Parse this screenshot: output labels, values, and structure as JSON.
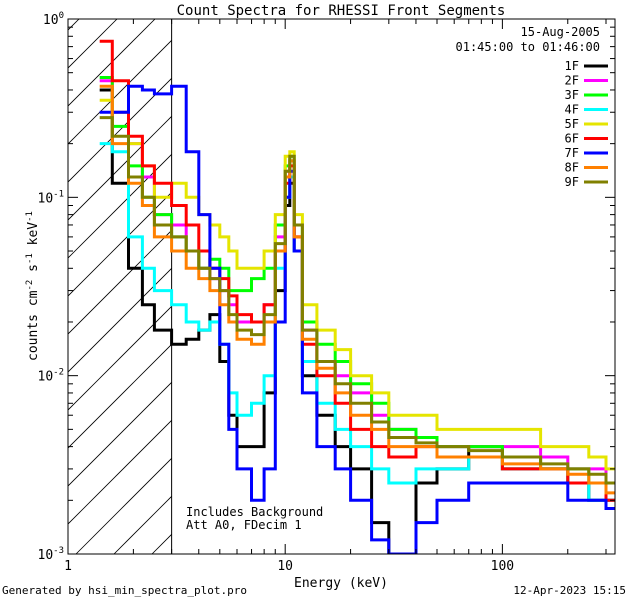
{
  "chart_data": {
    "type": "line",
    "title": "Count Spectra for RHESSI Front Segments",
    "xlabel": "Energy (keV)",
    "ylabel": {
      "main": "counts cm",
      "exp1": "-2",
      "mid": " s",
      "exp2": "-1",
      "mid2": " keV",
      "exp3": "-1"
    },
    "x_scale": "log",
    "y_scale": "log",
    "xlim": [
      1.0,
      330.0
    ],
    "ylim": [
      0.001,
      1.0
    ],
    "x_tick_labels": [
      "1",
      "10",
      "100"
    ],
    "y_tick_labels": [
      {
        "base": "10",
        "exp": "0",
        "value": 1.0
      },
      {
        "base": "10",
        "exp": "-1",
        "value": 0.1
      },
      {
        "base": "10",
        "exp": "-2",
        "value": 0.01
      },
      {
        "base": "10",
        "exp": "-3",
        "value": 0.001
      }
    ],
    "attenuator_region": {
      "xmax": 3.0,
      "style": "hatched"
    },
    "legend": {
      "placement": "top-right",
      "date": "15-Aug-2005",
      "time_range": "01:45:00 to 01:46:00"
    },
    "annotation": [
      "Includes Background",
      "Att A0, FDecim 1"
    ],
    "series": [
      {
        "name": "1F",
        "color": "#000000",
        "x": [
          1.4,
          1.6,
          1.9,
          2.2,
          2.5,
          3.0,
          3.5,
          4.0,
          4.5,
          5.0,
          5.5,
          6.0,
          7.0,
          8.0,
          9.0,
          10.0,
          10.5,
          11.0,
          12.0,
          14.0,
          17.0,
          20.0,
          25.0,
          30.0,
          40.0,
          50.0,
          70.0,
          100.0,
          150.0,
          200.0,
          250.0,
          300.0
        ],
        "y": [
          0.4,
          0.12,
          0.04,
          0.025,
          0.018,
          0.015,
          0.016,
          0.018,
          0.022,
          0.012,
          0.006,
          0.004,
          0.004,
          0.008,
          0.03,
          0.09,
          0.12,
          0.05,
          0.01,
          0.006,
          0.004,
          0.003,
          0.0015,
          0.001,
          0.0025,
          0.003,
          0.004,
          0.003,
          0.003,
          0.0025,
          0.002,
          0.002
        ]
      },
      {
        "name": "2F",
        "color": "#ff00ff",
        "x": [
          1.4,
          1.6,
          1.9,
          2.2,
          2.5,
          3.0,
          3.5,
          4.0,
          4.5,
          5.0,
          5.5,
          6.0,
          7.0,
          8.0,
          9.0,
          10.0,
          10.5,
          11.0,
          12.0,
          14.0,
          17.0,
          20.0,
          25.0,
          30.0,
          40.0,
          50.0,
          70.0,
          100.0,
          150.0,
          200.0,
          250.0,
          300.0
        ],
        "y": [
          0.45,
          0.3,
          0.2,
          0.13,
          0.08,
          0.07,
          0.05,
          0.04,
          0.035,
          0.03,
          0.025,
          0.02,
          0.02,
          0.025,
          0.06,
          0.14,
          0.16,
          0.06,
          0.018,
          0.012,
          0.01,
          0.008,
          0.006,
          0.005,
          0.0045,
          0.004,
          0.004,
          0.004,
          0.0035,
          0.003,
          0.003,
          0.0025
        ]
      },
      {
        "name": "3F",
        "color": "#00ff00",
        "x": [
          1.4,
          1.6,
          1.9,
          2.2,
          2.5,
          3.0,
          3.5,
          4.0,
          4.5,
          5.0,
          5.5,
          6.0,
          7.0,
          8.0,
          9.0,
          10.0,
          10.5,
          11.0,
          12.0,
          14.0,
          17.0,
          20.0,
          25.0,
          30.0,
          40.0,
          50.0,
          70.0,
          100.0,
          150.0,
          200.0,
          250.0,
          300.0
        ],
        "y": [
          0.47,
          0.25,
          0.15,
          0.1,
          0.08,
          0.06,
          0.05,
          0.04,
          0.045,
          0.04,
          0.03,
          0.03,
          0.035,
          0.04,
          0.07,
          0.15,
          0.17,
          0.07,
          0.02,
          0.015,
          0.012,
          0.009,
          0.007,
          0.005,
          0.0045,
          0.004,
          0.004,
          0.0035,
          0.003,
          0.003,
          0.0025,
          0.0025
        ]
      },
      {
        "name": "4F",
        "color": "#00ffff",
        "x": [
          1.4,
          1.6,
          1.9,
          2.2,
          2.5,
          3.0,
          3.5,
          4.0,
          4.5,
          5.0,
          5.5,
          6.0,
          7.0,
          8.0,
          9.0,
          10.0,
          10.5,
          11.0,
          12.0,
          14.0,
          17.0,
          20.0,
          25.0,
          30.0,
          40.0,
          50.0,
          70.0,
          100.0,
          150.0,
          200.0,
          250.0,
          300.0
        ],
        "y": [
          0.2,
          0.18,
          0.06,
          0.04,
          0.03,
          0.025,
          0.02,
          0.018,
          0.02,
          0.015,
          0.008,
          0.006,
          0.007,
          0.01,
          0.04,
          0.1,
          0.13,
          0.05,
          0.012,
          0.007,
          0.005,
          0.004,
          0.003,
          0.0025,
          0.003,
          0.003,
          0.0035,
          0.003,
          0.003,
          0.0025,
          0.002,
          0.002
        ]
      },
      {
        "name": "5F",
        "color": "#e5e500",
        "x": [
          1.4,
          1.6,
          1.9,
          2.2,
          2.5,
          3.0,
          3.5,
          4.0,
          4.5,
          5.0,
          5.5,
          6.0,
          7.0,
          8.0,
          9.0,
          10.0,
          10.5,
          11.0,
          12.0,
          14.0,
          17.0,
          20.0,
          25.0,
          30.0,
          40.0,
          50.0,
          70.0,
          100.0,
          150.0,
          200.0,
          250.0,
          300.0
        ],
        "y": [
          0.35,
          0.3,
          0.2,
          0.15,
          0.1,
          0.12,
          0.1,
          0.08,
          0.07,
          0.06,
          0.05,
          0.04,
          0.04,
          0.05,
          0.08,
          0.17,
          0.18,
          0.08,
          0.025,
          0.018,
          0.014,
          0.01,
          0.008,
          0.006,
          0.006,
          0.005,
          0.005,
          0.005,
          0.004,
          0.004,
          0.0035,
          0.003
        ]
      },
      {
        "name": "6F",
        "color": "#ff0000",
        "x": [
          1.4,
          1.6,
          1.9,
          2.2,
          2.5,
          3.0,
          3.5,
          4.0,
          4.5,
          5.0,
          5.5,
          6.0,
          7.0,
          8.0,
          9.0,
          10.0,
          10.5,
          11.0,
          12.0,
          14.0,
          17.0,
          20.0,
          25.0,
          30.0,
          40.0,
          50.0,
          70.0,
          100.0,
          150.0,
          200.0,
          250.0,
          300.0
        ],
        "y": [
          0.75,
          0.45,
          0.22,
          0.15,
          0.12,
          0.09,
          0.07,
          0.05,
          0.04,
          0.035,
          0.028,
          0.022,
          0.02,
          0.025,
          0.05,
          0.12,
          0.15,
          0.06,
          0.015,
          0.01,
          0.007,
          0.005,
          0.004,
          0.0035,
          0.004,
          0.0035,
          0.0035,
          0.003,
          0.003,
          0.0025,
          0.0025,
          0.002
        ]
      },
      {
        "name": "7F",
        "color": "#0000ff",
        "x": [
          1.4,
          1.6,
          1.9,
          2.2,
          2.5,
          3.0,
          3.5,
          4.0,
          4.5,
          5.0,
          5.5,
          6.0,
          7.0,
          8.0,
          9.0,
          10.0,
          10.5,
          11.0,
          12.0,
          14.0,
          17.0,
          20.0,
          25.0,
          30.0,
          40.0,
          50.0,
          70.0,
          100.0,
          150.0,
          200.0,
          250.0,
          300.0
        ],
        "y": [
          0.3,
          0.3,
          0.42,
          0.4,
          0.38,
          0.42,
          0.18,
          0.08,
          0.04,
          0.015,
          0.005,
          0.003,
          0.002,
          0.003,
          0.02,
          0.1,
          0.14,
          0.05,
          0.008,
          0.004,
          0.003,
          0.002,
          0.0012,
          0.001,
          0.0015,
          0.002,
          0.0025,
          0.0025,
          0.0025,
          0.002,
          0.002,
          0.0018
        ]
      },
      {
        "name": "8F",
        "color": "#ff8000",
        "x": [
          1.4,
          1.6,
          1.9,
          2.2,
          2.5,
          3.0,
          3.5,
          4.0,
          4.5,
          5.0,
          5.5,
          6.0,
          7.0,
          8.0,
          9.0,
          10.0,
          10.5,
          11.0,
          12.0,
          14.0,
          17.0,
          20.0,
          25.0,
          30.0,
          40.0,
          50.0,
          70.0,
          100.0,
          150.0,
          200.0,
          250.0,
          300.0
        ],
        "y": [
          0.42,
          0.2,
          0.12,
          0.09,
          0.06,
          0.05,
          0.04,
          0.035,
          0.03,
          0.025,
          0.02,
          0.016,
          0.015,
          0.02,
          0.05,
          0.13,
          0.16,
          0.06,
          0.016,
          0.011,
          0.008,
          0.006,
          0.005,
          0.004,
          0.004,
          0.0035,
          0.0035,
          0.0032,
          0.003,
          0.0028,
          0.0025,
          0.0022
        ]
      },
      {
        "name": "9F",
        "color": "#808000",
        "x": [
          1.4,
          1.6,
          1.9,
          2.2,
          2.5,
          3.0,
          3.5,
          4.0,
          4.5,
          5.0,
          5.5,
          6.0,
          7.0,
          8.0,
          9.0,
          10.0,
          10.5,
          11.0,
          12.0,
          14.0,
          17.0,
          20.0,
          25.0,
          30.0,
          40.0,
          50.0,
          70.0,
          100.0,
          150.0,
          200.0,
          250.0,
          300.0
        ],
        "y": [
          0.28,
          0.22,
          0.13,
          0.1,
          0.07,
          0.06,
          0.05,
          0.04,
          0.035,
          0.03,
          0.022,
          0.018,
          0.017,
          0.022,
          0.055,
          0.14,
          0.17,
          0.07,
          0.018,
          0.012,
          0.009,
          0.007,
          0.0055,
          0.0045,
          0.0042,
          0.004,
          0.0038,
          0.0035,
          0.0032,
          0.003,
          0.0028,
          0.0025
        ]
      }
    ]
  },
  "footer": {
    "generated_by": "Generated by hsi_min_spectra_plot.pro",
    "timestamp": "12-Apr-2023 15:15"
  }
}
